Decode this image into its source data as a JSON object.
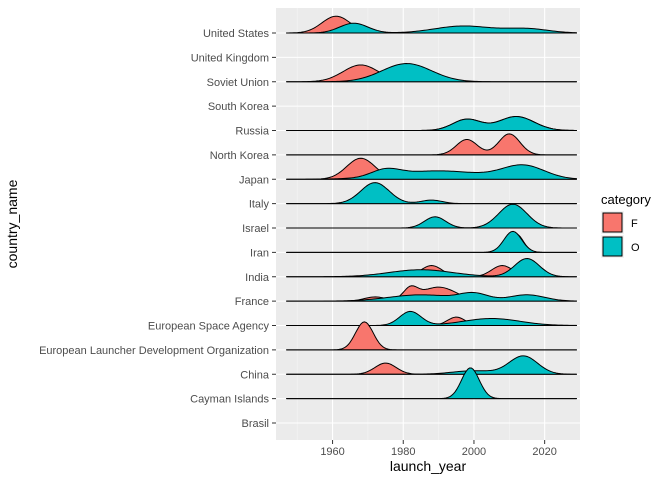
{
  "chart_data": {
    "type": "ridgeline",
    "xlabel": "launch_year",
    "ylabel": "country_name",
    "xlim": [
      1944,
      2030
    ],
    "x_ticks": [
      1960,
      1980,
      2000,
      2020
    ],
    "grid": true,
    "legend_position": "right",
    "legend": {
      "title": "category",
      "entries": [
        {
          "key": "F",
          "label": "F",
          "color": "#F8766D"
        },
        {
          "key": "O",
          "label": "O",
          "color": "#00BFC4"
        }
      ]
    },
    "countries": [
      "United States",
      "United Kingdom",
      "Soviet Union",
      "South Korea",
      "Russia",
      "North Korea",
      "Japan",
      "Italy",
      "Israel",
      "Iran",
      "India",
      "France",
      "European Space Agency",
      "European Launcher Development Organization",
      "China",
      "Cayman Islands",
      "Brasil"
    ],
    "ridges": [
      {
        "country": "United States",
        "range": [
          1947,
          2029
        ],
        "F": [
          [
            1961,
            4,
            1.2
          ]
        ],
        "O": [
          [
            1966,
            4,
            0.7
          ],
          [
            1997,
            8,
            0.5
          ],
          [
            2015,
            6,
            0.3
          ]
        ]
      },
      {
        "country": "United Kingdom",
        "range": null,
        "F": [],
        "O": []
      },
      {
        "country": "Soviet Union",
        "range": [
          1947,
          2029
        ],
        "F": [
          [
            1968,
            5,
            1.2
          ]
        ],
        "O": [
          [
            1981,
            7,
            1.3
          ]
        ]
      },
      {
        "country": "South Korea",
        "range": null,
        "F": [],
        "O": []
      },
      {
        "country": "Russia",
        "range": [
          1947,
          2029
        ],
        "F": [
          [
            1998,
            4,
            0.8
          ],
          [
            2012,
            5,
            1.0
          ]
        ],
        "O": [
          [
            1998,
            4,
            0.8
          ],
          [
            2012,
            5,
            1.0
          ]
        ]
      },
      {
        "country": "North Korea",
        "range": [
          1947,
          2029
        ],
        "F": [
          [
            1998,
            3,
            1.1
          ],
          [
            2010,
            3,
            1.5
          ]
        ],
        "O": []
      },
      {
        "country": "Japan",
        "range": [
          1947,
          2029
        ],
        "F": [
          [
            1968,
            4,
            1.5
          ],
          [
            2002,
            3,
            0.3
          ]
        ],
        "O": [
          [
            1975,
            4,
            0.5
          ],
          [
            1990,
            12,
            0.6
          ],
          [
            2014,
            6,
            0.95
          ]
        ]
      },
      {
        "country": "Italy",
        "range": [
          1947,
          2029
        ],
        "F": [],
        "O": [
          [
            1972,
            4,
            1.5
          ],
          [
            1988,
            3,
            0.25
          ]
        ]
      },
      {
        "country": "Israel",
        "range": [
          1947,
          2029
        ],
        "F": [],
        "O": [
          [
            1989,
            3,
            0.8
          ],
          [
            2011,
            4,
            1.7
          ]
        ]
      },
      {
        "country": "Iran",
        "range": [
          1947,
          2029
        ],
        "F": [
          [
            2012,
            2,
            1.3
          ]
        ],
        "O": [
          [
            2011,
            2.5,
            1.5
          ]
        ]
      },
      {
        "country": "India",
        "range": [
          1947,
          2029
        ],
        "F": [
          [
            1988,
            3,
            0.8
          ],
          [
            2008,
            3,
            0.8
          ]
        ],
        "O": [
          [
            1985,
            9,
            0.5
          ],
          [
            2015,
            3.5,
            1.3
          ]
        ]
      },
      {
        "country": "France",
        "range": [
          1947,
          2029
        ],
        "F": [
          [
            1972,
            3,
            0.3
          ],
          [
            1982,
            2,
            0.8
          ],
          [
            1990,
            5,
            1.0
          ]
        ],
        "O": [
          [
            1985,
            9,
            0.45
          ],
          [
            2000,
            4,
            0.5
          ],
          [
            2015,
            5,
            0.45
          ]
        ]
      },
      {
        "country": "European Space Agency",
        "range": [
          1947,
          2029
        ],
        "F": [
          [
            1982,
            2,
            0.5
          ],
          [
            1995,
            2.5,
            0.6
          ]
        ],
        "O": [
          [
            1982,
            3,
            1.0
          ],
          [
            2005,
            8,
            0.5
          ]
        ]
      },
      {
        "country": "European Launcher Development Organization",
        "range": [
          1947,
          2029
        ],
        "F": [
          [
            1969,
            2.5,
            2.0
          ]
        ],
        "O": []
      },
      {
        "country": "China",
        "range": [
          1947,
          2029
        ],
        "F": [
          [
            1975,
            3,
            0.8
          ]
        ],
        "O": [
          [
            2000,
            6,
            0.25
          ],
          [
            2014,
            4,
            1.3
          ]
        ]
      },
      {
        "country": "Cayman Islands",
        "range": [
          1947,
          2029
        ],
        "F": [],
        "O": [
          [
            1999,
            2.5,
            2.2
          ]
        ]
      },
      {
        "country": "Brasil",
        "range": null,
        "F": [],
        "O": []
      }
    ]
  }
}
